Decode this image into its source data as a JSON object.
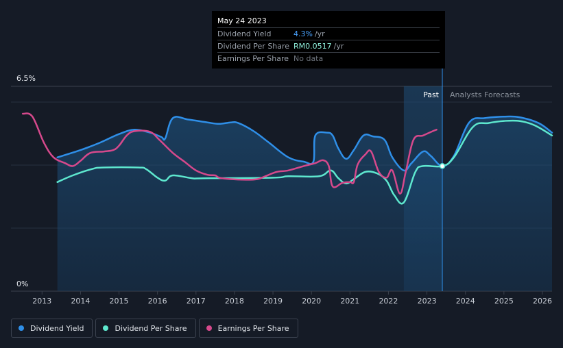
{
  "tooltip": {
    "date": "May 24 2023",
    "rows": [
      {
        "label": "Dividend Yield",
        "value": "4.3%",
        "unit": "/yr"
      },
      {
        "label": "Dividend Per Share",
        "value": "RM0.0517",
        "unit": "/yr"
      },
      {
        "label": "Earnings Per Share",
        "value": "No data",
        "unit": ""
      }
    ]
  },
  "legend": {
    "items": [
      {
        "label": "Dividend Yield",
        "color": "#2f8fe8"
      },
      {
        "label": "Dividend Per Share",
        "color": "#5ee8cf"
      },
      {
        "label": "Earnings Per Share",
        "color": "#d6498c"
      }
    ]
  },
  "chart_data": {
    "type": "line",
    "title": "",
    "xlabel": "",
    "ylabel": "",
    "xlim": [
      2012.3,
      2026.25
    ],
    "ylim": [
      0,
      6.5
    ],
    "y_tick_labels": [
      "0%",
      "6.5%"
    ],
    "x_ticks": [
      2013,
      2014,
      2015,
      2016,
      2017,
      2018,
      2019,
      2020,
      2021,
      2022,
      2023,
      2024,
      2025,
      2026
    ],
    "regions": {
      "past_label": "Past",
      "forecast_label": "Analysts Forecasts",
      "past_start": 2022.4,
      "present": 2023.4
    },
    "series": [
      {
        "name": "Dividend Yield",
        "color": "#2f8fe8",
        "filled": true,
        "points": [
          [
            2013.4,
            4.6
          ],
          [
            2014.0,
            4.85
          ],
          [
            2014.5,
            5.1
          ],
          [
            2015.0,
            5.4
          ],
          [
            2015.4,
            5.55
          ],
          [
            2015.8,
            5.45
          ],
          [
            2016.1,
            5.3
          ],
          [
            2016.2,
            5.25
          ],
          [
            2016.4,
            5.95
          ],
          [
            2016.8,
            5.9
          ],
          [
            2017.3,
            5.8
          ],
          [
            2017.6,
            5.75
          ],
          [
            2017.9,
            5.8
          ],
          [
            2018.1,
            5.78
          ],
          [
            2018.5,
            5.5
          ],
          [
            2018.9,
            5.1
          ],
          [
            2019.4,
            4.6
          ],
          [
            2019.8,
            4.45
          ],
          [
            2020.05,
            4.45
          ],
          [
            2020.1,
            5.35
          ],
          [
            2020.4,
            5.45
          ],
          [
            2020.55,
            5.35
          ],
          [
            2020.7,
            4.9
          ],
          [
            2020.9,
            4.55
          ],
          [
            2021.1,
            4.85
          ],
          [
            2021.35,
            5.35
          ],
          [
            2021.6,
            5.32
          ],
          [
            2021.9,
            5.2
          ],
          [
            2022.1,
            4.6
          ],
          [
            2022.4,
            4.15
          ],
          [
            2022.6,
            4.4
          ],
          [
            2022.9,
            4.8
          ],
          [
            2023.1,
            4.65
          ],
          [
            2023.4,
            4.3
          ],
          [
            2023.7,
            4.65
          ],
          [
            2024.1,
            5.8
          ],
          [
            2024.5,
            5.95
          ],
          [
            2025.0,
            6.0
          ],
          [
            2025.4,
            5.98
          ],
          [
            2025.9,
            5.78
          ],
          [
            2026.25,
            5.45
          ]
        ]
      },
      {
        "name": "Dividend Per Share",
        "color": "#5ee8cf",
        "filled": false,
        "points": [
          [
            2013.4,
            3.75
          ],
          [
            2013.8,
            3.98
          ],
          [
            2014.3,
            4.2
          ],
          [
            2014.6,
            4.25
          ],
          [
            2015.5,
            4.25
          ],
          [
            2015.7,
            4.2
          ],
          [
            2016.0,
            3.9
          ],
          [
            2016.2,
            3.8
          ],
          [
            2016.4,
            3.98
          ],
          [
            2016.9,
            3.88
          ],
          [
            2017.2,
            3.88
          ],
          [
            2019.0,
            3.9
          ],
          [
            2019.4,
            3.95
          ],
          [
            2020.2,
            3.95
          ],
          [
            2020.5,
            4.15
          ],
          [
            2020.7,
            3.88
          ],
          [
            2020.9,
            3.7
          ],
          [
            2021.1,
            3.85
          ],
          [
            2021.4,
            4.1
          ],
          [
            2021.7,
            4.05
          ],
          [
            2021.95,
            3.8
          ],
          [
            2022.15,
            3.3
          ],
          [
            2022.4,
            3.05
          ],
          [
            2022.7,
            4.1
          ],
          [
            2022.9,
            4.3
          ],
          [
            2023.4,
            4.3
          ],
          [
            2023.7,
            4.6
          ],
          [
            2024.2,
            5.65
          ],
          [
            2024.6,
            5.78
          ],
          [
            2025.0,
            5.85
          ],
          [
            2025.4,
            5.85
          ],
          [
            2025.8,
            5.7
          ],
          [
            2026.25,
            5.35
          ]
        ]
      },
      {
        "name": "Earnings Per Share",
        "color": "#d6498c",
        "filled": false,
        "points": [
          [
            2012.5,
            6.1
          ],
          [
            2012.75,
            6.0
          ],
          [
            2013.05,
            5.1
          ],
          [
            2013.3,
            4.6
          ],
          [
            2013.6,
            4.4
          ],
          [
            2013.8,
            4.3
          ],
          [
            2014.0,
            4.48
          ],
          [
            2014.25,
            4.75
          ],
          [
            2014.6,
            4.8
          ],
          [
            2014.85,
            4.85
          ],
          [
            2015.0,
            5.0
          ],
          [
            2015.2,
            5.35
          ],
          [
            2015.4,
            5.5
          ],
          [
            2015.8,
            5.48
          ],
          [
            2016.05,
            5.2
          ],
          [
            2016.4,
            4.75
          ],
          [
            2016.7,
            4.45
          ],
          [
            2017.0,
            4.15
          ],
          [
            2017.3,
            4.0
          ],
          [
            2017.5,
            3.98
          ],
          [
            2017.6,
            3.9
          ],
          [
            2017.9,
            3.85
          ],
          [
            2018.3,
            3.83
          ],
          [
            2018.6,
            3.85
          ],
          [
            2018.8,
            3.95
          ],
          [
            2019.1,
            4.1
          ],
          [
            2019.4,
            4.15
          ],
          [
            2019.8,
            4.3
          ],
          [
            2020.1,
            4.4
          ],
          [
            2020.3,
            4.5
          ],
          [
            2020.45,
            4.3
          ],
          [
            2020.55,
            3.6
          ],
          [
            2020.8,
            3.72
          ],
          [
            2021.0,
            3.75
          ],
          [
            2021.1,
            3.75
          ],
          [
            2021.2,
            4.35
          ],
          [
            2021.4,
            4.7
          ],
          [
            2021.55,
            4.8
          ],
          [
            2021.75,
            4.1
          ],
          [
            2021.95,
            3.9
          ],
          [
            2022.1,
            4.15
          ],
          [
            2022.3,
            3.35
          ],
          [
            2022.45,
            4.1
          ],
          [
            2022.65,
            5.2
          ],
          [
            2022.9,
            5.35
          ],
          [
            2023.15,
            5.5
          ],
          [
            2023.25,
            5.55
          ]
        ]
      }
    ]
  }
}
